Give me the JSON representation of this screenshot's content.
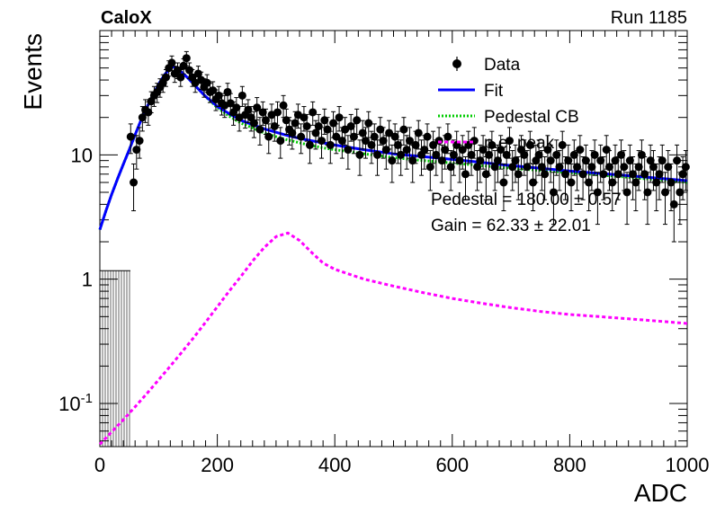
{
  "header": {
    "experiment": "CaloX",
    "run": "Run 1185"
  },
  "annotations": {
    "pedestal": "Pedestal = 180.00 ± 0.57",
    "gain": "Gain = 62.33 ± 22.01"
  },
  "colors": {
    "data": "#000000",
    "fit": "#0000ff",
    "pedestal_cb": "#00cc00",
    "pe_peak": "#ff00ff",
    "frame": "#000000"
  },
  "chart_data": {
    "type": "scatter",
    "xlabel": "ADC",
    "ylabel": "Events",
    "xlim": [
      0,
      1000
    ],
    "ylim": [
      0.045,
      100
    ],
    "yscale": "log",
    "x_ticks": [
      0,
      200,
      400,
      600,
      800,
      1000
    ],
    "x_tick_labels": [
      "0",
      "200",
      "400",
      "600",
      "800",
      "1000"
    ],
    "y_ticks": [
      0.1,
      1,
      10
    ],
    "y_tick_labels": [
      "10^-1",
      "1",
      "10"
    ],
    "legend": {
      "placement": "top-right",
      "entries": [
        "Data",
        "Fit",
        "Pedestal CB",
        "p.e. peak"
      ]
    },
    "bin_width": 5,
    "data": {
      "name": "Data",
      "x": [
        52.5,
        57.5,
        62.5,
        67.5,
        72.5,
        77.5,
        82.5,
        87.5,
        92.5,
        97.5,
        102.5,
        107.5,
        112.5,
        117.5,
        122.5,
        127.5,
        132.5,
        137.5,
        142.5,
        147.5,
        152.5,
        157.5,
        162.5,
        167.5,
        172.5,
        177.5,
        182.5,
        187.5,
        192.5,
        197.5,
        202.5,
        207.5,
        212.5,
        217.5,
        222.5,
        227.5,
        232.5,
        237.5,
        242.5,
        247.5,
        252.5,
        257.5,
        262.5,
        267.5,
        272.5,
        277.5,
        282.5,
        287.5,
        292.5,
        297.5,
        302.5,
        307.5,
        312.5,
        317.5,
        322.5,
        327.5,
        332.5,
        337.5,
        342.5,
        347.5,
        352.5,
        357.5,
        362.5,
        367.5,
        372.5,
        377.5,
        382.5,
        387.5,
        392.5,
        397.5,
        402.5,
        407.5,
        412.5,
        417.5,
        422.5,
        427.5,
        432.5,
        437.5,
        442.5,
        447.5,
        452.5,
        457.5,
        462.5,
        467.5,
        472.5,
        477.5,
        482.5,
        487.5,
        492.5,
        497.5,
        502.5,
        507.5,
        512.5,
        517.5,
        522.5,
        527.5,
        532.5,
        537.5,
        542.5,
        547.5,
        552.5,
        557.5,
        562.5,
        567.5,
        572.5,
        577.5,
        582.5,
        587.5,
        592.5,
        597.5,
        602.5,
        607.5,
        612.5,
        617.5,
        622.5,
        627.5,
        632.5,
        637.5,
        642.5,
        647.5,
        652.5,
        657.5,
        662.5,
        667.5,
        672.5,
        677.5,
        682.5,
        687.5,
        692.5,
        697.5,
        702.5,
        707.5,
        712.5,
        717.5,
        722.5,
        727.5,
        732.5,
        737.5,
        742.5,
        747.5,
        752.5,
        757.5,
        762.5,
        767.5,
        772.5,
        777.5,
        782.5,
        787.5,
        792.5,
        797.5,
        802.5,
        807.5,
        812.5,
        817.5,
        822.5,
        827.5,
        832.5,
        837.5,
        842.5,
        847.5,
        852.5,
        857.5,
        862.5,
        867.5,
        872.5,
        877.5,
        882.5,
        887.5,
        892.5,
        897.5,
        902.5,
        907.5,
        912.5,
        917.5,
        922.5,
        927.5,
        932.5,
        937.5,
        942.5,
        947.5,
        952.5,
        957.5,
        962.5,
        967.5,
        972.5,
        977.5,
        982.5,
        987.5,
        992.5,
        997.5
      ],
      "y": [
        14,
        6,
        11,
        13,
        20,
        23,
        22,
        27,
        30,
        32,
        35,
        38,
        42,
        50,
        55,
        45,
        48,
        42,
        52,
        60,
        48,
        42,
        38,
        45,
        40,
        35,
        38,
        32,
        33,
        28,
        30,
        26,
        25,
        32,
        26,
        22,
        24,
        20,
        30,
        21,
        23,
        20,
        18,
        24,
        16,
        22,
        19,
        14,
        21,
        17,
        22,
        13,
        25,
        19,
        16,
        15,
        18,
        21,
        14,
        20,
        17,
        12,
        22,
        15,
        17,
        13,
        19,
        16,
        12,
        18,
        14,
        20,
        13,
        16,
        11,
        17,
        14,
        19,
        10,
        15,
        13,
        18,
        12,
        14,
        10,
        16,
        13,
        11,
        15,
        9,
        14,
        12,
        10,
        16,
        11,
        13,
        9,
        12,
        15,
        10,
        11,
        14,
        8,
        12,
        10,
        13,
        9,
        11,
        14,
        8,
        10,
        12,
        9,
        11,
        7,
        12,
        10,
        13,
        8,
        9,
        11,
        7,
        10,
        12,
        8,
        9,
        11,
        6,
        10,
        13,
        8,
        9,
        7,
        11,
        10,
        8,
        12,
        6,
        9,
        10,
        8,
        7,
        11,
        9,
        5,
        10,
        8,
        12,
        7,
        9,
        6,
        10,
        8,
        11,
        7,
        9,
        6,
        8,
        10,
        5,
        9,
        7,
        11,
        8,
        6,
        9,
        7,
        10,
        8,
        5,
        9,
        7,
        6,
        8,
        10,
        7,
        5,
        9,
        8,
        6,
        7,
        9,
        5,
        8,
        6,
        4,
        9,
        5,
        7,
        8
      ]
    },
    "series": [
      {
        "name": "Fit",
        "x": [
          0,
          10,
          20,
          30,
          40,
          50,
          60,
          70,
          80,
          90,
          100,
          110,
          120,
          125,
          130,
          140,
          150,
          160,
          170,
          180,
          190,
          200,
          220,
          240,
          260,
          280,
          300,
          320,
          340,
          360,
          380,
          400,
          450,
          500,
          550,
          600,
          650,
          700,
          750,
          800,
          850,
          900,
          950,
          1000
        ],
        "y": [
          2.5,
          3.5,
          4.8,
          6.4,
          8.4,
          11,
          14.5,
          19,
          24,
          30,
          37,
          44,
          50,
          51,
          50,
          46,
          41.5,
          37,
          33,
          29.5,
          27,
          24.5,
          21.5,
          19,
          17.5,
          16.2,
          15.2,
          14.3,
          13.6,
          13,
          12.5,
          12,
          11,
          10.2,
          9.7,
          9.2,
          8.7,
          8.2,
          7.8,
          7.4,
          7.1,
          6.8,
          6.5,
          6.2
        ]
      },
      {
        "name": "Pedestal CB",
        "x": [
          0,
          10,
          20,
          30,
          40,
          50,
          60,
          70,
          80,
          90,
          100,
          110,
          120,
          125,
          130,
          140,
          150,
          160,
          170,
          180,
          190,
          200,
          220,
          240,
          260,
          280,
          300,
          320,
          340,
          360,
          380,
          400,
          450,
          500,
          550,
          600,
          650,
          700,
          750,
          800,
          850,
          900,
          950,
          1000
        ],
        "y": [
          2.5,
          3.5,
          4.8,
          6.4,
          8.4,
          11,
          14.5,
          19,
          24,
          30,
          37,
          44,
          50,
          51,
          50,
          46,
          41.5,
          37,
          33,
          29.5,
          26.5,
          24,
          20.5,
          18,
          16.5,
          15,
          14,
          13.2,
          12.5,
          11.9,
          11.4,
          11,
          10.2,
          9.5,
          9,
          8.6,
          8.2,
          7.8,
          7.5,
          7.2,
          6.9,
          6.6,
          6.3,
          6
        ]
      },
      {
        "name": "p.e. peak",
        "x": [
          0,
          20,
          40,
          60,
          80,
          100,
          120,
          140,
          160,
          180,
          200,
          220,
          240,
          260,
          280,
          300,
          320,
          340,
          360,
          380,
          400,
          450,
          500,
          550,
          600,
          650,
          700,
          750,
          800,
          850,
          900,
          950,
          1000
        ],
        "y": [
          0.047,
          0.059,
          0.074,
          0.094,
          0.12,
          0.155,
          0.2,
          0.26,
          0.34,
          0.45,
          0.6,
          0.8,
          1.05,
          1.4,
          1.8,
          2.2,
          2.35,
          2.05,
          1.65,
          1.35,
          1.2,
          1,
          0.88,
          0.78,
          0.7,
          0.64,
          0.59,
          0.55,
          0.52,
          0.5,
          0.48,
          0.46,
          0.44
        ]
      }
    ]
  }
}
